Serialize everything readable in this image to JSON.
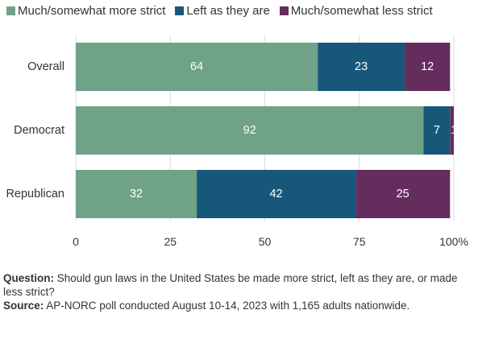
{
  "legend": [
    {
      "label": "Much/somewhat more strict",
      "color": "#6fa287"
    },
    {
      "label": "Left as they are",
      "color": "#17587a"
    },
    {
      "label": "Much/somewhat less strict",
      "color": "#642d5e"
    }
  ],
  "chart_data": {
    "type": "bar",
    "orientation": "horizontal",
    "stacked": true,
    "categories": [
      "Overall",
      "Democrat",
      "Republican"
    ],
    "series": [
      {
        "name": "Much/somewhat more strict",
        "color": "#6fa287",
        "values": [
          64,
          92,
          32
        ]
      },
      {
        "name": "Left as they are",
        "color": "#17587a",
        "values": [
          23,
          7,
          42
        ]
      },
      {
        "name": "Much/somewhat less strict",
        "color": "#642d5e",
        "values": [
          12,
          1,
          25
        ]
      }
    ],
    "xlim": [
      0,
      100
    ],
    "xticks": [
      0,
      25,
      50,
      75,
      100
    ],
    "xtick_labels": [
      "0",
      "25",
      "50",
      "75",
      "100%"
    ],
    "grid": "vertical",
    "legend_position": "top"
  },
  "notes": {
    "question_label": "Question:",
    "question_text": "Should gun laws in the United States be made more strict, left as they are, or made less strict?",
    "source_label": "Source:",
    "source_text": "AP-NORC poll conducted August 10-14, 2023 with 1,165 adults nationwide."
  }
}
